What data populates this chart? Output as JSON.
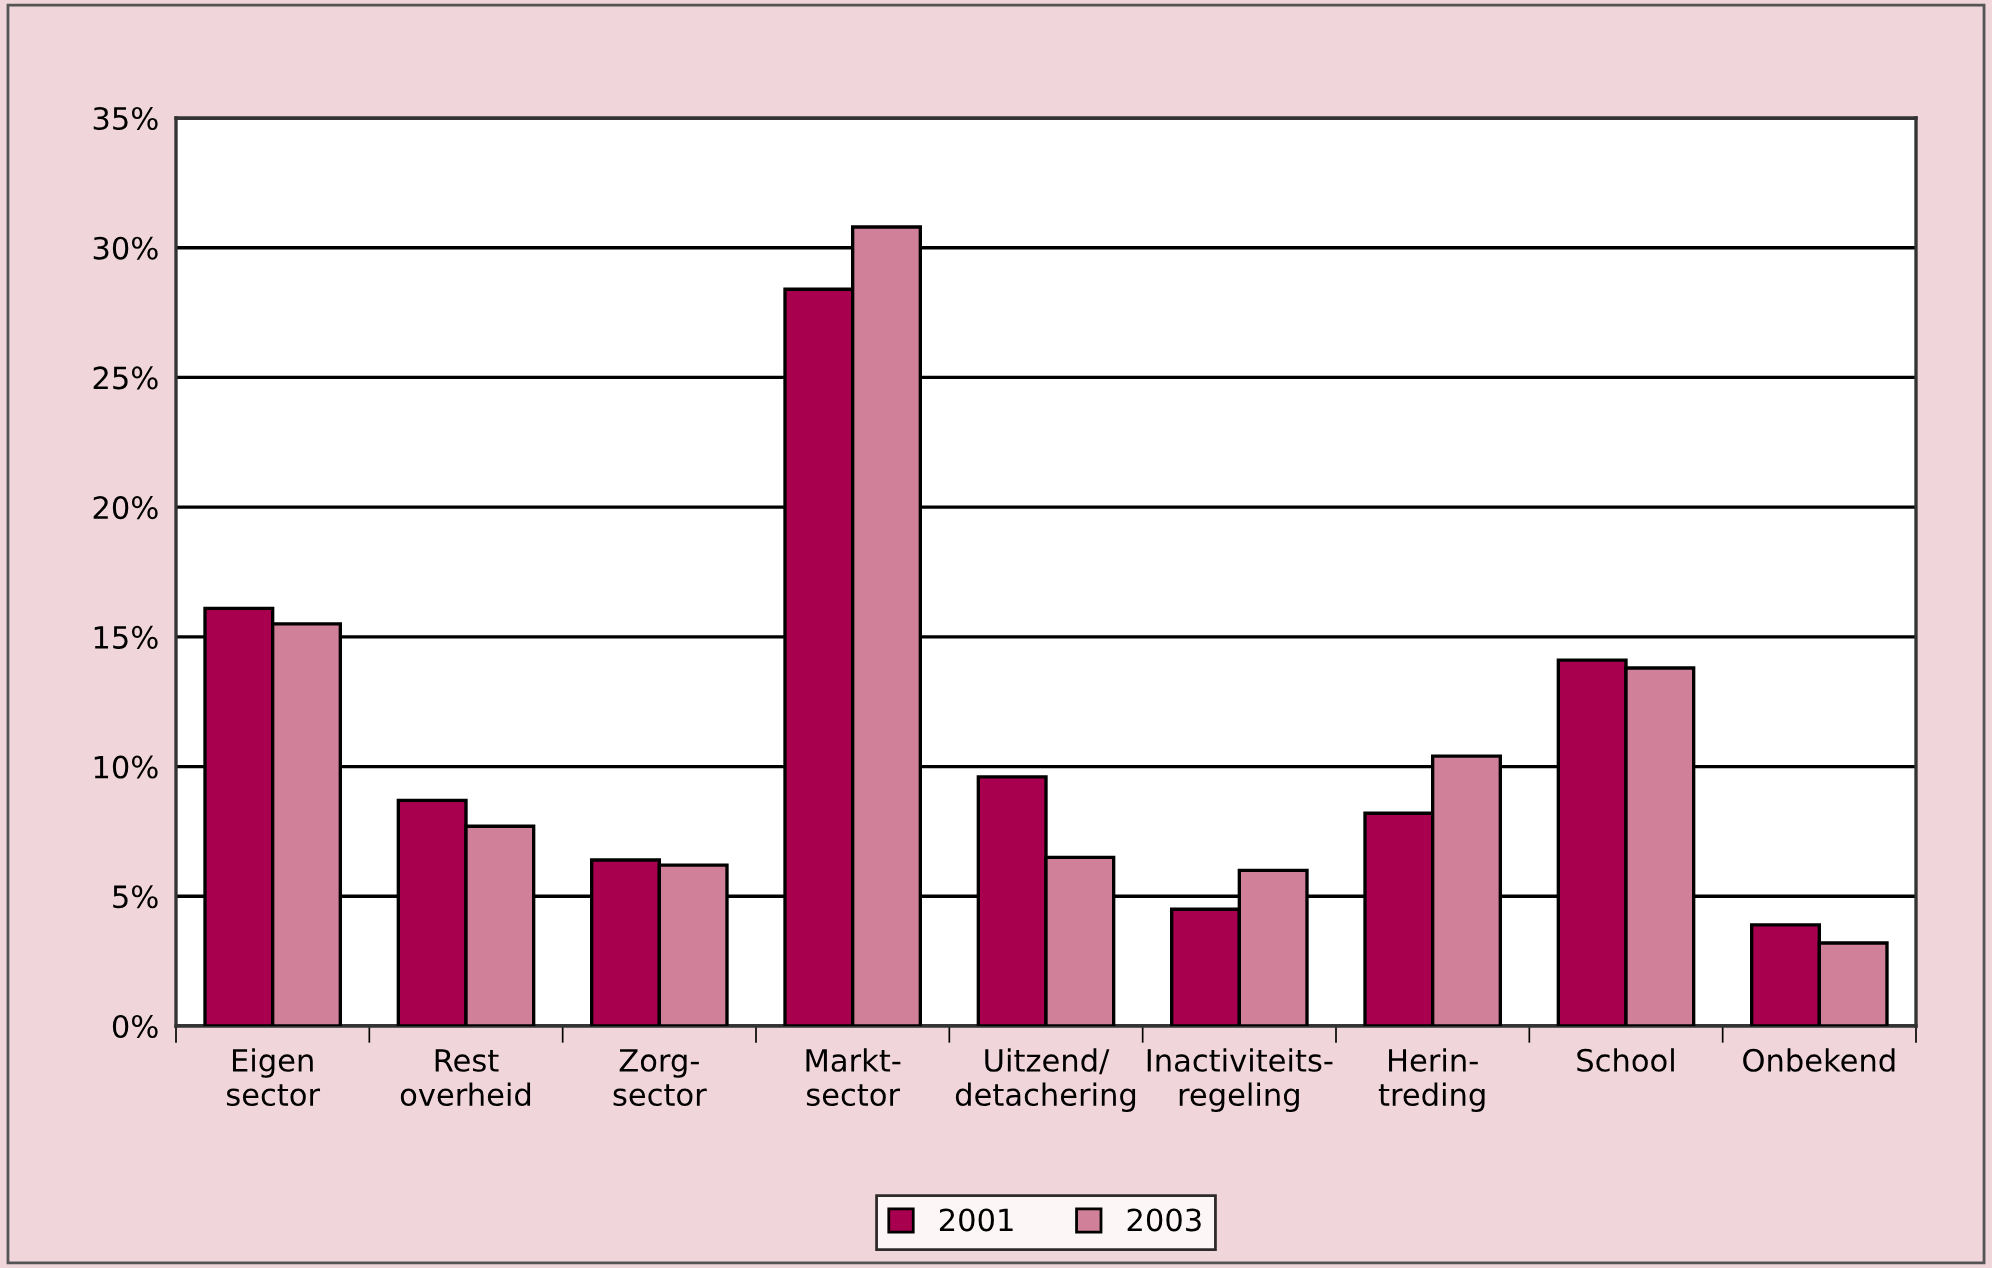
{
  "chart_data": {
    "type": "bar",
    "categories": [
      "Eigen\nsector",
      "Rest\noverheid",
      "Zorg-\nsector",
      "Markt-\nsector",
      "Uitzend/\ndetachering",
      "Inactiviteits-\nregeling",
      "Herin-\ntreding",
      "School",
      "Onbekend"
    ],
    "series": [
      {
        "name": "2001",
        "color": "#a8004f",
        "values": [
          16.1,
          8.7,
          6.4,
          28.4,
          9.6,
          4.5,
          8.2,
          14.1,
          3.9
        ]
      },
      {
        "name": "2003",
        "color": "#d08098",
        "values": [
          15.5,
          7.7,
          6.2,
          30.8,
          6.5,
          6.0,
          10.4,
          13.8,
          3.2
        ]
      }
    ],
    "ylim": [
      0,
      35
    ],
    "yticks": [
      {
        "value": 0,
        "label": "0%"
      },
      {
        "value": 5,
        "label": "5%"
      },
      {
        "value": 10,
        "label": "10%"
      },
      {
        "value": 15,
        "label": "15%"
      },
      {
        "value": 20,
        "label": "20%"
      },
      {
        "value": 25,
        "label": "25%"
      },
      {
        "value": 30,
        "label": "30%"
      },
      {
        "value": 35,
        "label": "35%"
      }
    ],
    "grid": "y",
    "legend": "bottom"
  }
}
